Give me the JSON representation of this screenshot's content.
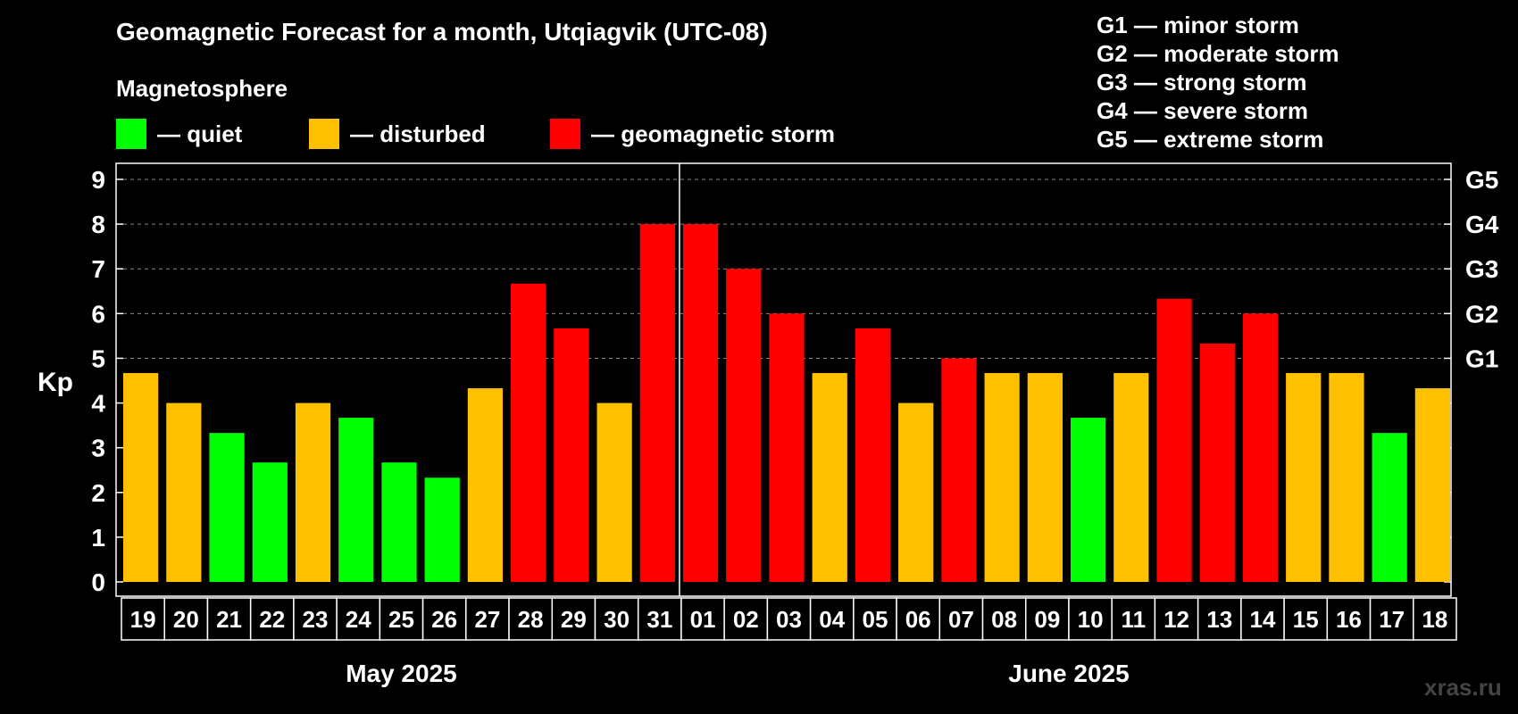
{
  "title": "Geomagnetic Forecast for a month, Utqiagvik (UTC-08)",
  "subtitle": "Magnetosphere",
  "legend": [
    {
      "label": "— quiet",
      "color": "#00ff00"
    },
    {
      "label": "— disturbed",
      "color": "#ffc000"
    },
    {
      "label": "— geomagnetic storm",
      "color": "#ff0000"
    }
  ],
  "storm_legend": [
    "G1 — minor storm",
    "G2 — moderate storm",
    "G3 — strong storm",
    "G4 — severe storm",
    "G5 — extreme storm"
  ],
  "watermark": "xras.ru",
  "colors": {
    "quiet": "#00ff00",
    "disturbed": "#ffc000",
    "storm": "#ff0000",
    "background": "#000000"
  },
  "chart_data": {
    "type": "bar",
    "ylabel": "Kp",
    "ylim": [
      0,
      9
    ],
    "yticks": [
      "0",
      "1",
      "2",
      "3",
      "4",
      "5",
      "6",
      "7",
      "8",
      "9"
    ],
    "right_ticks": [
      {
        "value": 5,
        "label": "G1"
      },
      {
        "value": 6,
        "label": "G2"
      },
      {
        "value": 7,
        "label": "G3"
      },
      {
        "value": 8,
        "label": "G4"
      },
      {
        "value": 9,
        "label": "G5"
      }
    ],
    "months": [
      {
        "label": "May 2025",
        "count": 13
      },
      {
        "label": "June 2025",
        "count": 18
      }
    ],
    "categories": [
      "19",
      "20",
      "21",
      "22",
      "23",
      "24",
      "25",
      "26",
      "27",
      "28",
      "29",
      "30",
      "31",
      "01",
      "02",
      "03",
      "04",
      "05",
      "06",
      "07",
      "08",
      "09",
      "10",
      "11",
      "12",
      "13",
      "14",
      "15",
      "16",
      "17",
      "18"
    ],
    "values": [
      4.67,
      4.0,
      3.33,
      2.67,
      4.0,
      3.67,
      2.67,
      2.33,
      4.33,
      6.67,
      5.67,
      4.0,
      8.0,
      8.0,
      7.0,
      6.0,
      4.67,
      5.67,
      4.0,
      5.0,
      4.67,
      4.67,
      3.67,
      4.67,
      6.33,
      5.33,
      6.0,
      4.67,
      4.67,
      3.33,
      4.33
    ],
    "status": [
      "disturbed",
      "disturbed",
      "quiet",
      "quiet",
      "disturbed",
      "quiet",
      "quiet",
      "quiet",
      "disturbed",
      "storm",
      "storm",
      "disturbed",
      "storm",
      "storm",
      "storm",
      "storm",
      "disturbed",
      "storm",
      "disturbed",
      "storm",
      "disturbed",
      "disturbed",
      "quiet",
      "disturbed",
      "storm",
      "storm",
      "storm",
      "disturbed",
      "disturbed",
      "quiet",
      "disturbed"
    ],
    "grid": true
  }
}
